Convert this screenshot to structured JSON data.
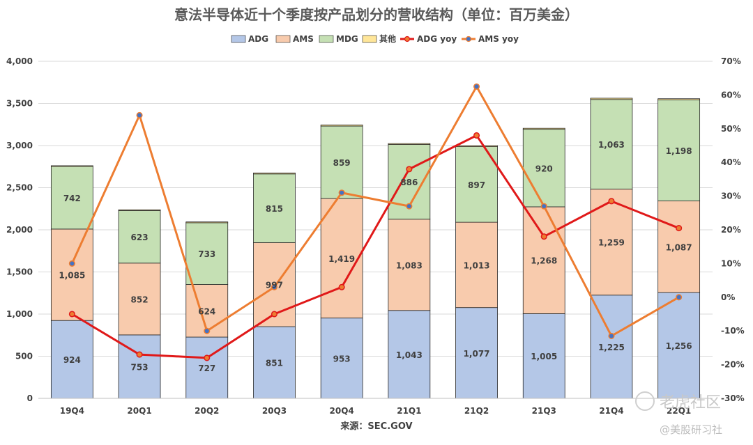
{
  "chart_data": {
    "type": "bar",
    "stacked": true,
    "title": "意法半导体近十个季度按产品划分的营收结构（单位：百万美金）",
    "categories": [
      "19Q4",
      "20Q1",
      "20Q2",
      "20Q3",
      "20Q4",
      "21Q1",
      "21Q2",
      "21Q3",
      "21Q4",
      "22Q1"
    ],
    "series": [
      {
        "name": "ADG",
        "kind": "bar",
        "color": "#b4c7e7",
        "values": [
          924,
          753,
          727,
          851,
          953,
          1043,
          1077,
          1005,
          1225,
          1256
        ]
      },
      {
        "name": "AMS",
        "kind": "bar",
        "color": "#f8cbad",
        "values": [
          1085,
          852,
          624,
          997,
          1419,
          1083,
          1013,
          1268,
          1259,
          1087
        ]
      },
      {
        "name": "MDG",
        "kind": "bar",
        "color": "#c5e0b4",
        "values": [
          742,
          623,
          733,
          815,
          859,
          886,
          897,
          920,
          1063,
          1198
        ]
      },
      {
        "name": "其他",
        "kind": "bar",
        "color": "#ffe699",
        "values": [
          10,
          10,
          10,
          12,
          14,
          12,
          12,
          12,
          15,
          15
        ]
      },
      {
        "name": "ADG yoy",
        "kind": "line",
        "axis": "right",
        "color": "#e01919",
        "values": [
          -5,
          -17,
          -18,
          -5,
          3,
          38,
          48,
          18,
          28.5,
          20.5
        ]
      },
      {
        "name": "AMS yoy",
        "kind": "line",
        "axis": "right",
        "color": "#ed7d31",
        "values": [
          10,
          54,
          -10,
          3,
          31,
          27,
          62.5,
          27,
          -11.5,
          0
        ]
      }
    ],
    "bar_labels": [
      [
        "924",
        "753",
        "727",
        "851",
        "953",
        "1,043",
        "1,077",
        "1,005",
        "1,225",
        "1,256"
      ],
      [
        "1,085",
        "852",
        "624",
        "997",
        "1,419",
        "1,083",
        "1,013",
        "1,268",
        "1,259",
        "1,087"
      ],
      [
        "742",
        "623",
        "733",
        "815",
        "859",
        "886",
        "897",
        "920",
        "1,063",
        "1,198"
      ]
    ],
    "y_left": {
      "min": 0,
      "max": 4000,
      "step": 500,
      "ticks": [
        "0",
        "500",
        "1,000",
        "1,500",
        "2,000",
        "2,500",
        "3,000",
        "3,500",
        "4,000"
      ]
    },
    "y_right": {
      "min": -30,
      "max": 70,
      "step": 10,
      "ticks": [
        "-30%",
        "-20%",
        "-10%",
        "0%",
        "10%",
        "20%",
        "30%",
        "40%",
        "50%",
        "60%",
        "70%"
      ]
    },
    "legend_position": "top-center",
    "xlabel": "来源：SEC.GOV",
    "grid": true
  },
  "watermark": {
    "brand": "老虎社区",
    "handle": "@美股研习社"
  }
}
